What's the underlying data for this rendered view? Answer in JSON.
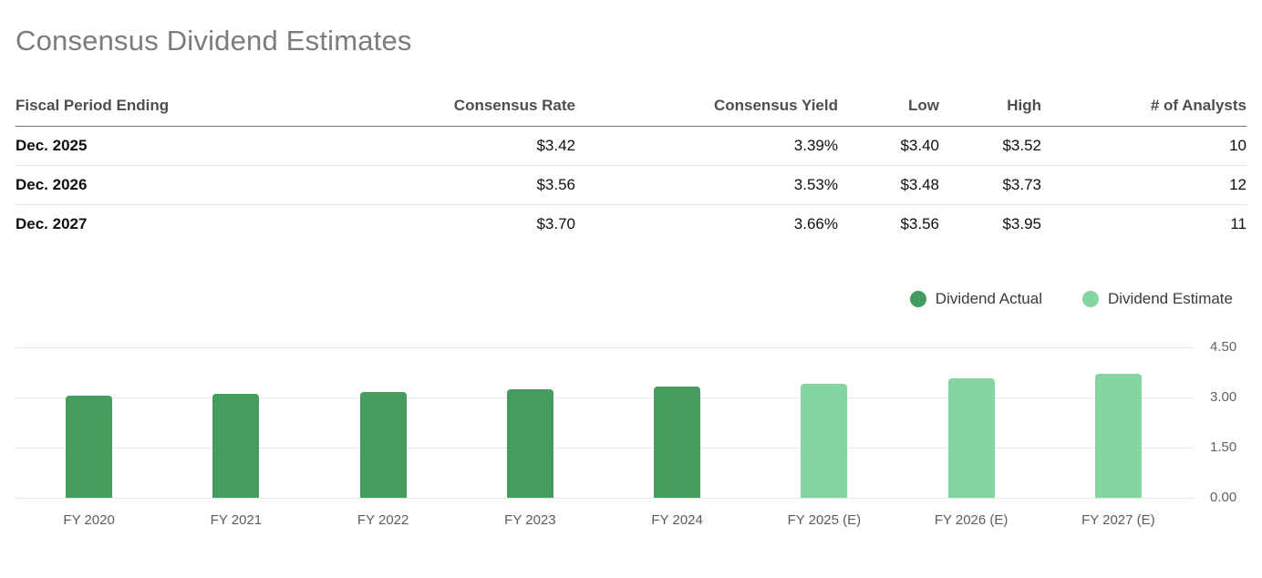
{
  "page": {
    "title": "Consensus Dividend Estimates"
  },
  "table": {
    "columns": [
      {
        "label": "Fiscal Period Ending",
        "align": "left"
      },
      {
        "label": "Consensus Rate",
        "align": "right"
      },
      {
        "label": "Consensus Yield",
        "align": "right"
      },
      {
        "label": "Low",
        "align": "right"
      },
      {
        "label": "High",
        "align": "right"
      },
      {
        "label": "# of Analysts",
        "align": "right"
      }
    ],
    "rows": [
      [
        "Dec. 2025",
        "$3.42",
        "3.39%",
        "$3.40",
        "$3.52",
        "10"
      ],
      [
        "Dec. 2026",
        "$3.56",
        "3.53%",
        "$3.48",
        "$3.73",
        "12"
      ],
      [
        "Dec. 2027",
        "$3.70",
        "3.66%",
        "$3.56",
        "$3.95",
        "11"
      ]
    ]
  },
  "chart_data": {
    "type": "bar",
    "title": "",
    "categories": [
      "FY 2020",
      "FY 2021",
      "FY 2022",
      "FY 2023",
      "FY 2024",
      "FY 2025 (E)",
      "FY 2026 (E)",
      "FY 2027 (E)"
    ],
    "series": [
      {
        "name": "Dividend Actual",
        "color": "#449c5f",
        "values": [
          3.06,
          3.1,
          3.16,
          3.24,
          3.32,
          null,
          null,
          null
        ]
      },
      {
        "name": "Dividend Estimate",
        "color": "#85d5a0",
        "values": [
          null,
          null,
          null,
          null,
          null,
          3.42,
          3.56,
          3.7
        ]
      }
    ],
    "ylim": [
      0,
      4.5
    ],
    "yticks": [
      0,
      1.5,
      3,
      4.5
    ],
    "ytick_labels": [
      "0.00",
      "1.50",
      "3.00",
      "4.50"
    ],
    "y_axis_side": "right",
    "grid": true,
    "legend_position": "top-right"
  }
}
